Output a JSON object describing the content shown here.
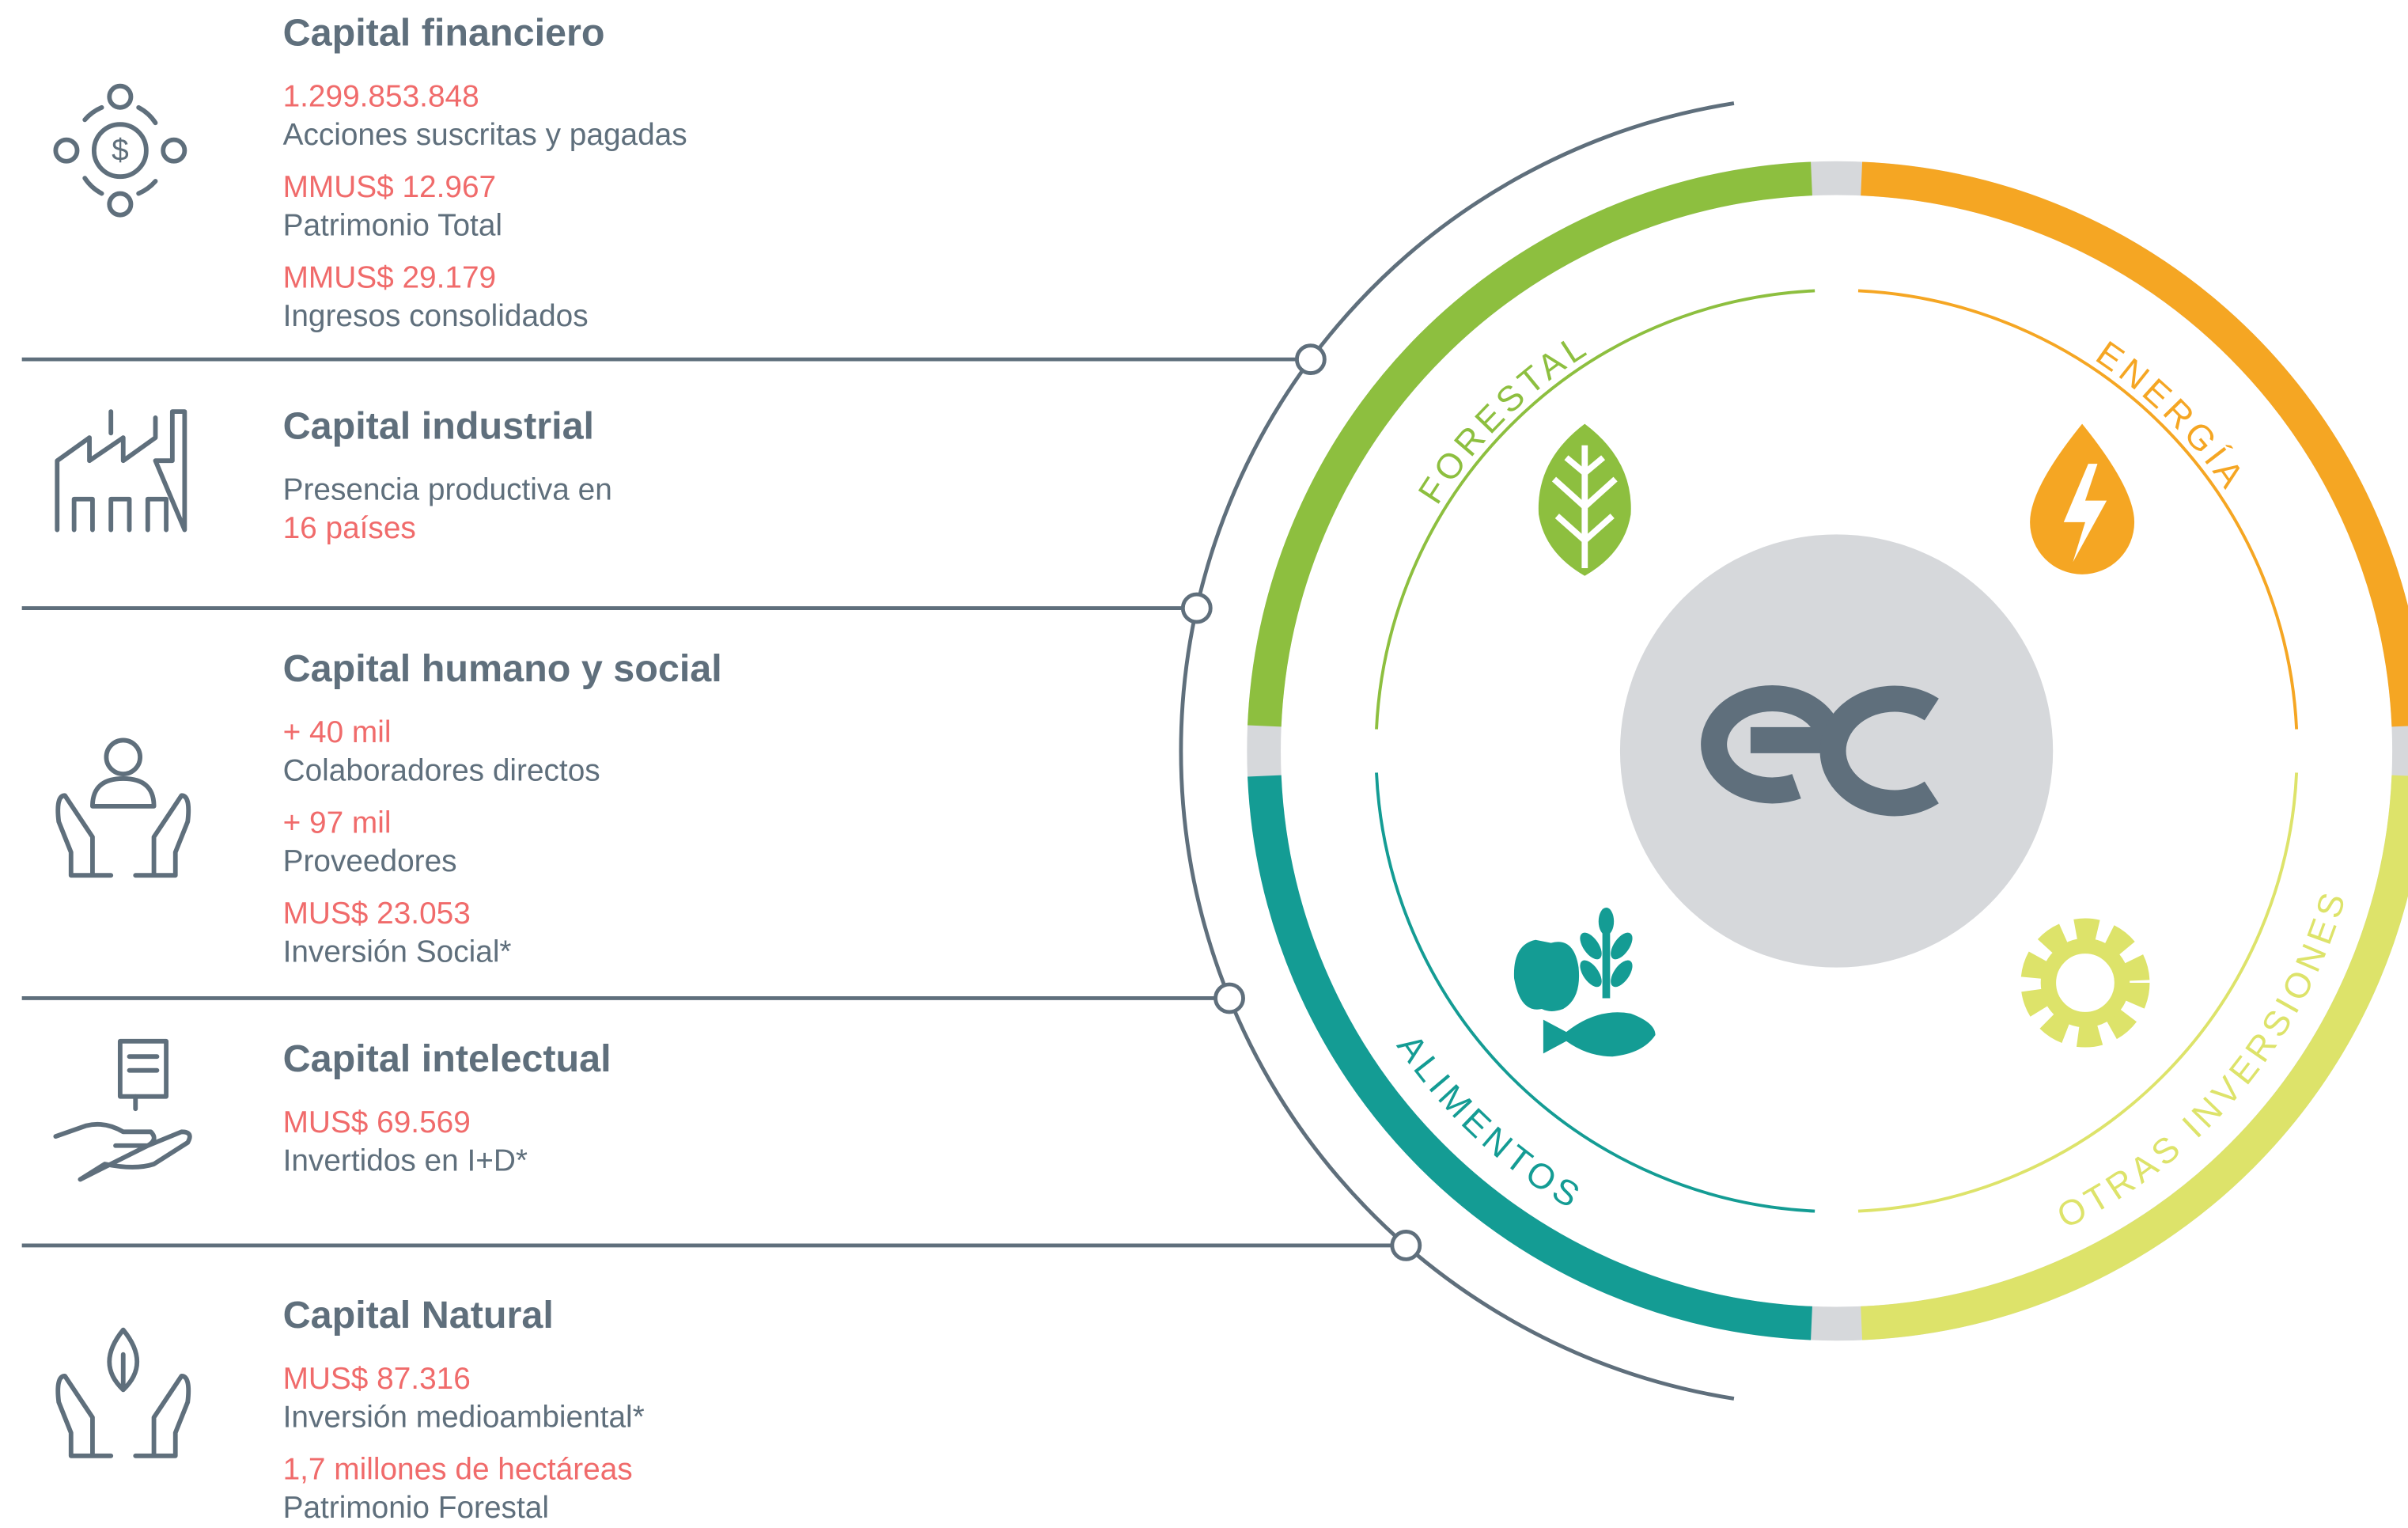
{
  "capitals": [
    {
      "title": "Capital financiero",
      "lines": [
        {
          "value": "1.299.853.848"
        },
        {
          "label": "Acciones suscritas y pagadas"
        },
        {
          "value": "MMUS$ 12.967"
        },
        {
          "label": "Patrimonio Total"
        },
        {
          "value": "MMUS$ 29.179"
        },
        {
          "label": "Ingresos consolidados"
        }
      ]
    },
    {
      "title": "Capital industrial",
      "lines": [
        {
          "label": "Presencia productiva en"
        },
        {
          "value": "16 países"
        }
      ]
    },
    {
      "title": "Capital humano y social",
      "lines": [
        {
          "value": "+ 40 mil"
        },
        {
          "label": "Colaboradores directos"
        },
        {
          "value": "+ 97 mil"
        },
        {
          "label": "Proveedores"
        },
        {
          "value": "MUS$ 23.053"
        },
        {
          "label": "Inversión Social*"
        }
      ]
    },
    {
      "title": "Capital intelectual",
      "lines": [
        {
          "value": "MUS$ 69.569"
        },
        {
          "label": "Invertidos en I+D*"
        }
      ]
    },
    {
      "title": "Capital Natural",
      "lines": [
        {
          "value": "MUS$ 87.316"
        },
        {
          "label": "Inversión medioambiental*"
        },
        {
          "value": "1,7 millones de hectáreas"
        },
        {
          "label": "Patrimonio Forestal"
        }
      ]
    }
  ],
  "segments": [
    {
      "name": "FORESTAL",
      "color": "#8dbf3f"
    },
    {
      "name": "ENERGÍA",
      "color": "#f5a623"
    },
    {
      "name": "OTRAS INVERSIONES",
      "color": "#dde36a"
    },
    {
      "name": "ALIMENTOS",
      "color": "#149c94"
    }
  ]
}
